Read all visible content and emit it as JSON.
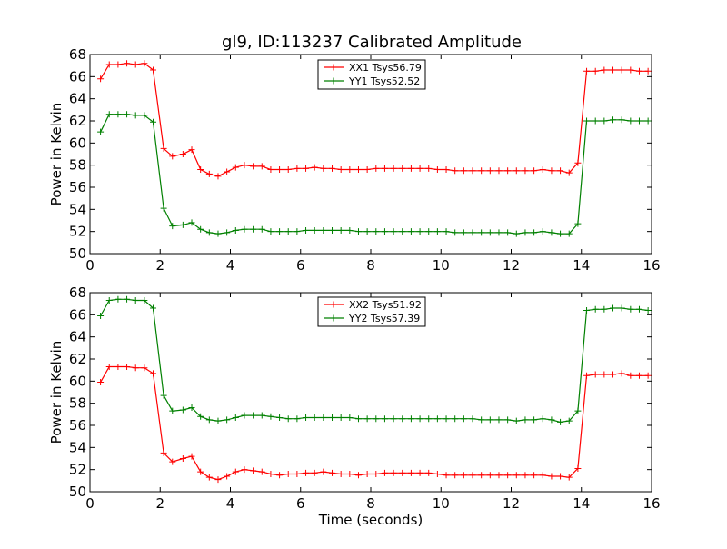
{
  "figure": {
    "title": "gl9, ID:113237 Calibrated Amplitude"
  },
  "chart_data": [
    {
      "type": "line",
      "title": "gl9, ID:113237 Calibrated Amplitude",
      "xlabel": "",
      "ylabel": "Power in Kelvin",
      "xlim": [
        0,
        16
      ],
      "ylim": [
        50,
        68
      ],
      "xticks": [
        "0",
        "2",
        "4",
        "6",
        "8",
        "10",
        "12",
        "14",
        "16"
      ],
      "yticks": [
        "50",
        "52",
        "54",
        "56",
        "58",
        "60",
        "62",
        "64",
        "66",
        "68"
      ],
      "grid": false,
      "legend_position": "top-center",
      "marker": "plus",
      "x": [
        0.3,
        0.55,
        0.8,
        1.05,
        1.3,
        1.55,
        1.8,
        2.1,
        2.35,
        2.65,
        2.9,
        3.15,
        3.4,
        3.65,
        3.9,
        4.15,
        4.4,
        4.65,
        4.9,
        5.15,
        5.4,
        5.65,
        5.9,
        6.15,
        6.4,
        6.65,
        6.9,
        7.15,
        7.4,
        7.65,
        7.9,
        8.15,
        8.4,
        8.65,
        8.9,
        9.15,
        9.4,
        9.65,
        9.9,
        10.15,
        10.4,
        10.65,
        10.9,
        11.15,
        11.4,
        11.65,
        11.9,
        12.15,
        12.4,
        12.65,
        12.9,
        13.15,
        13.4,
        13.65,
        13.9,
        14.15,
        14.4,
        14.65,
        14.9,
        15.15,
        15.4,
        15.65,
        15.9
      ],
      "series": [
        {
          "name": "XX1 Tsys56.79",
          "color": "#ff0000",
          "values": [
            65.8,
            67.1,
            67.1,
            67.2,
            67.1,
            67.2,
            66.6,
            59.5,
            58.8,
            59.0,
            59.4,
            57.6,
            57.2,
            57.0,
            57.4,
            57.8,
            58.0,
            57.9,
            57.9,
            57.6,
            57.6,
            57.6,
            57.7,
            57.7,
            57.8,
            57.7,
            57.7,
            57.6,
            57.6,
            57.6,
            57.6,
            57.7,
            57.7,
            57.7,
            57.7,
            57.7,
            57.7,
            57.7,
            57.6,
            57.6,
            57.5,
            57.5,
            57.5,
            57.5,
            57.5,
            57.5,
            57.5,
            57.5,
            57.5,
            57.5,
            57.6,
            57.5,
            57.5,
            57.3,
            58.2,
            66.5,
            66.5,
            66.6,
            66.6,
            66.6,
            66.6,
            66.5,
            66.5
          ]
        },
        {
          "name": "YY1 Tsys52.52",
          "color": "#008000",
          "values": [
            61.0,
            62.6,
            62.6,
            62.6,
            62.5,
            62.5,
            61.9,
            54.1,
            52.5,
            52.6,
            52.8,
            52.2,
            51.9,
            51.8,
            51.9,
            52.1,
            52.2,
            52.2,
            52.2,
            52.0,
            52.0,
            52.0,
            52.0,
            52.1,
            52.1,
            52.1,
            52.1,
            52.1,
            52.1,
            52.0,
            52.0,
            52.0,
            52.0,
            52.0,
            52.0,
            52.0,
            52.0,
            52.0,
            52.0,
            52.0,
            51.9,
            51.9,
            51.9,
            51.9,
            51.9,
            51.9,
            51.9,
            51.8,
            51.9,
            51.9,
            52.0,
            51.9,
            51.8,
            51.8,
            52.7,
            62.0,
            62.0,
            62.0,
            62.1,
            62.1,
            62.0,
            62.0,
            62.0
          ]
        }
      ]
    },
    {
      "type": "line",
      "title": "",
      "xlabel": "Time (seconds)",
      "ylabel": "Power in Kelvin",
      "xlim": [
        0,
        16
      ],
      "ylim": [
        50,
        68
      ],
      "xticks": [
        "0",
        "2",
        "4",
        "6",
        "8",
        "10",
        "12",
        "14",
        "16"
      ],
      "yticks": [
        "50",
        "52",
        "54",
        "56",
        "58",
        "60",
        "62",
        "64",
        "66",
        "68"
      ],
      "grid": false,
      "legend_position": "top-center",
      "marker": "plus",
      "x": [
        0.3,
        0.55,
        0.8,
        1.05,
        1.3,
        1.55,
        1.8,
        2.1,
        2.35,
        2.65,
        2.9,
        3.15,
        3.4,
        3.65,
        3.9,
        4.15,
        4.4,
        4.65,
        4.9,
        5.15,
        5.4,
        5.65,
        5.9,
        6.15,
        6.4,
        6.65,
        6.9,
        7.15,
        7.4,
        7.65,
        7.9,
        8.15,
        8.4,
        8.65,
        8.9,
        9.15,
        9.4,
        9.65,
        9.9,
        10.15,
        10.4,
        10.65,
        10.9,
        11.15,
        11.4,
        11.65,
        11.9,
        12.15,
        12.4,
        12.65,
        12.9,
        13.15,
        13.4,
        13.65,
        13.9,
        14.15,
        14.4,
        14.65,
        14.9,
        15.15,
        15.4,
        15.65,
        15.9
      ],
      "series": [
        {
          "name": "XX2 Tsys51.92",
          "color": "#ff0000",
          "values": [
            59.9,
            61.3,
            61.3,
            61.3,
            61.2,
            61.2,
            60.7,
            53.5,
            52.7,
            53.0,
            53.2,
            51.8,
            51.3,
            51.1,
            51.4,
            51.8,
            52.0,
            51.9,
            51.8,
            51.6,
            51.5,
            51.6,
            51.6,
            51.7,
            51.7,
            51.8,
            51.7,
            51.6,
            51.6,
            51.5,
            51.6,
            51.6,
            51.7,
            51.7,
            51.7,
            51.7,
            51.7,
            51.7,
            51.6,
            51.5,
            51.5,
            51.5,
            51.5,
            51.5,
            51.5,
            51.5,
            51.5,
            51.5,
            51.5,
            51.5,
            51.5,
            51.4,
            51.4,
            51.3,
            52.1,
            60.5,
            60.6,
            60.6,
            60.6,
            60.7,
            60.5,
            60.5,
            60.5
          ]
        },
        {
          "name": "YY2 Tsys57.39",
          "color": "#008000",
          "values": [
            65.9,
            67.3,
            67.4,
            67.4,
            67.3,
            67.3,
            66.6,
            58.7,
            57.3,
            57.4,
            57.6,
            56.8,
            56.5,
            56.4,
            56.5,
            56.7,
            56.9,
            56.9,
            56.9,
            56.8,
            56.7,
            56.6,
            56.6,
            56.7,
            56.7,
            56.7,
            56.7,
            56.7,
            56.7,
            56.6,
            56.6,
            56.6,
            56.6,
            56.6,
            56.6,
            56.6,
            56.6,
            56.6,
            56.6,
            56.6,
            56.6,
            56.6,
            56.6,
            56.5,
            56.5,
            56.5,
            56.5,
            56.4,
            56.5,
            56.5,
            56.6,
            56.5,
            56.3,
            56.4,
            57.3,
            66.4,
            66.5,
            66.5,
            66.6,
            66.6,
            66.5,
            66.5,
            66.4
          ]
        }
      ]
    }
  ]
}
